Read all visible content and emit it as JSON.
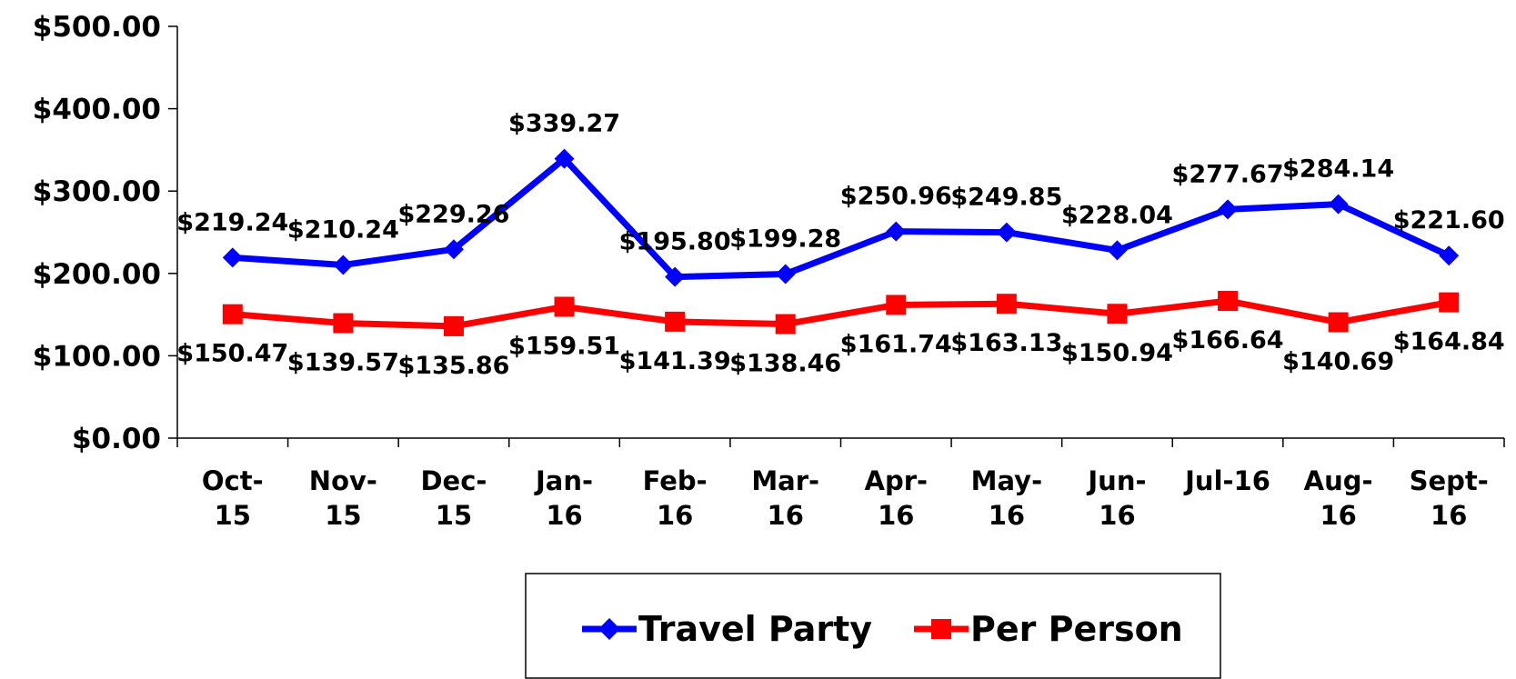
{
  "chart_data": {
    "type": "line",
    "categories": [
      "Oct-15",
      "Nov-15",
      "Dec-15",
      "Jan-16",
      "Feb-16",
      "Mar-16",
      "Apr-16",
      "May-16",
      "Jun-16",
      "Jul-16",
      "Aug-16",
      "Sept-16"
    ],
    "series": [
      {
        "name": "Travel Party",
        "color": "#0000ff",
        "marker": "diamond",
        "values": [
          219.24,
          210.24,
          229.26,
          339.27,
          195.8,
          199.28,
          250.96,
          249.85,
          228.04,
          277.67,
          284.14,
          221.6
        ],
        "value_labels": [
          "$219.24",
          "$210.24",
          "$229.26",
          "$339.27",
          "$195.80",
          "$199.28",
          "$250.96",
          "$249.85",
          "$228.04",
          "$277.67",
          "$284.14",
          "$221.60"
        ]
      },
      {
        "name": "Per Person",
        "color": "#ff0000",
        "marker": "square",
        "values": [
          150.47,
          139.57,
          135.86,
          159.51,
          141.39,
          138.46,
          161.74,
          163.13,
          150.94,
          166.64,
          140.69,
          164.84
        ],
        "value_labels": [
          "$150.47",
          "$139.57",
          "$135.86",
          "$159.51",
          "$141.39",
          "$138.46",
          "$161.74",
          "$163.13",
          "$150.94",
          "$166.64",
          "$140.69",
          "$164.84"
        ]
      }
    ],
    "ylim": [
      0,
      500
    ],
    "yticks": [
      {
        "value": 0,
        "label": "$0.00"
      },
      {
        "value": 100,
        "label": "$100.00"
      },
      {
        "value": 200,
        "label": "$200.00"
      },
      {
        "value": 300,
        "label": "$300.00"
      },
      {
        "value": 400,
        "label": "$400.00"
      },
      {
        "value": 500,
        "label": "$500.00"
      }
    ],
    "legend": "bottom"
  }
}
